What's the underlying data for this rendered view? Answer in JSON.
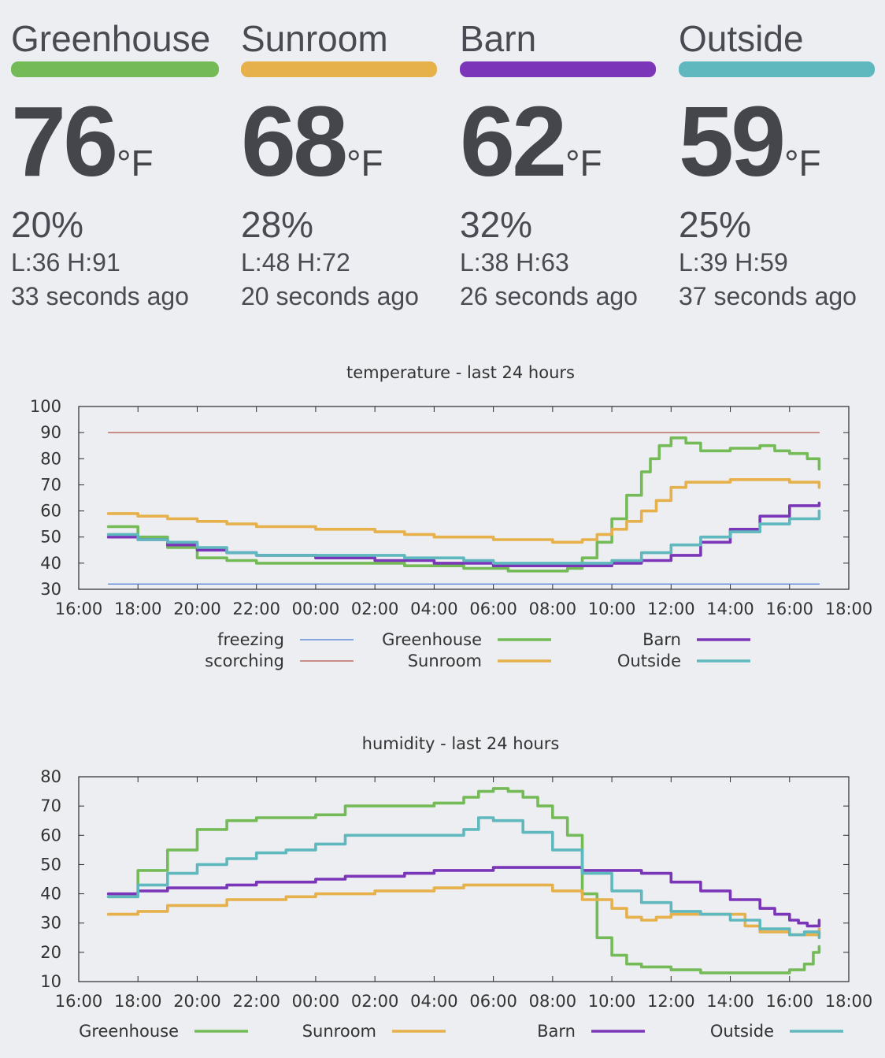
{
  "sensors": [
    {
      "name": "Greenhouse",
      "color": "#74bb58",
      "temp": "76",
      "unit": "°F",
      "humidity": "20%",
      "lowhigh": "L:36 H:91",
      "updated": "33 seconds ago"
    },
    {
      "name": "Sunroom",
      "color": "#e6b04b",
      "temp": "68",
      "unit": "°F",
      "humidity": "28%",
      "lowhigh": "L:48 H:72",
      "updated": "20 seconds ago"
    },
    {
      "name": "Barn",
      "color": "#7b35b8",
      "temp": "62",
      "unit": "°F",
      "humidity": "32%",
      "lowhigh": "L:38 H:63",
      "updated": "26 seconds ago"
    },
    {
      "name": "Outside",
      "color": "#5fb8bd",
      "temp": "59",
      "unit": "°F",
      "humidity": "25%",
      "lowhigh": "L:39 H:59",
      "updated": "37 seconds ago"
    }
  ],
  "chart_data": [
    {
      "type": "line",
      "title": "temperature - last 24 hours",
      "xlabel": "",
      "ylabel": "",
      "x_ticks": [
        "16:00",
        "18:00",
        "20:00",
        "22:00",
        "00:00",
        "02:00",
        "04:00",
        "06:00",
        "08:00",
        "10:00",
        "12:00",
        "14:00",
        "16:00",
        "18:00"
      ],
      "xlim": [
        0,
        26
      ],
      "ylim": [
        30,
        100
      ],
      "y_ticks": [
        30,
        40,
        50,
        60,
        70,
        80,
        90,
        100
      ],
      "grid": false,
      "legend": "bottom",
      "series": [
        {
          "name": "freezing",
          "color": "#4a78d6",
          "x": [
            1,
            25
          ],
          "values": [
            32,
            32
          ]
        },
        {
          "name": "scorching",
          "color": "#b5514a",
          "x": [
            1,
            25
          ],
          "values": [
            90,
            90
          ]
        },
        {
          "name": "Greenhouse",
          "color": "#74bb58",
          "x": [
            1,
            2,
            3,
            4,
            5,
            6,
            7,
            8,
            9,
            10,
            11,
            12,
            13,
            14,
            14.5,
            15,
            15.5,
            16,
            16.5,
            17,
            17.5,
            18,
            18.5,
            19,
            19.3,
            19.6,
            20,
            20.5,
            21,
            21.5,
            22,
            22.5,
            23,
            23.5,
            24,
            24.3,
            24.6,
            25
          ],
          "values": [
            54,
            50,
            46,
            42,
            41,
            40,
            40,
            40,
            40,
            40,
            39,
            39,
            38,
            38,
            37,
            37,
            37,
            37,
            38,
            42,
            48,
            57,
            66,
            75,
            80,
            85,
            88,
            86,
            83,
            83,
            84,
            84,
            85,
            83,
            82,
            82,
            80,
            76
          ]
        },
        {
          "name": "Sunroom",
          "color": "#e6b04b",
          "x": [
            1,
            2,
            3,
            4,
            5,
            6,
            7,
            8,
            9,
            10,
            11,
            12,
            13,
            14,
            15,
            16,
            16.5,
            17,
            17.5,
            18,
            18.5,
            19,
            19.5,
            20,
            20.5,
            21,
            22,
            23,
            24,
            25
          ],
          "values": [
            59,
            58,
            57,
            56,
            55,
            54,
            54,
            53,
            53,
            52,
            51,
            50,
            50,
            49,
            49,
            48,
            48,
            49,
            51,
            53,
            56,
            60,
            64,
            69,
            71,
            71,
            72,
            72,
            71,
            69
          ]
        },
        {
          "name": "Barn",
          "color": "#7b35b8",
          "x": [
            1,
            2,
            3,
            4,
            5,
            6,
            7,
            8,
            9,
            10,
            11,
            12,
            13,
            14,
            15,
            16,
            17,
            18,
            19,
            20,
            21,
            22,
            23,
            24,
            25
          ],
          "values": [
            50,
            49,
            47,
            45,
            44,
            43,
            43,
            42,
            42,
            41,
            41,
            40,
            40,
            39,
            39,
            39,
            39,
            40,
            41,
            43,
            48,
            53,
            58,
            62,
            63
          ]
        },
        {
          "name": "Outside",
          "color": "#5fb8bd",
          "x": [
            1,
            2,
            3,
            4,
            5,
            6,
            7,
            8,
            9,
            10,
            11,
            12,
            13,
            14,
            15,
            16,
            17,
            18,
            19,
            20,
            21,
            22,
            23,
            24,
            25
          ],
          "values": [
            51,
            49,
            48,
            46,
            44,
            43,
            43,
            43,
            43,
            43,
            42,
            42,
            41,
            40,
            40,
            40,
            40,
            41,
            44,
            47,
            50,
            52,
            55,
            57,
            60
          ]
        }
      ]
    },
    {
      "type": "line",
      "title": "humidity - last 24 hours",
      "xlabel": "",
      "ylabel": "",
      "x_ticks": [
        "16:00",
        "18:00",
        "20:00",
        "22:00",
        "00:00",
        "02:00",
        "04:00",
        "06:00",
        "08:00",
        "10:00",
        "12:00",
        "14:00",
        "16:00",
        "18:00"
      ],
      "xlim": [
        0,
        26
      ],
      "ylim": [
        10,
        80
      ],
      "y_ticks": [
        10,
        20,
        30,
        40,
        50,
        60,
        70,
        80
      ],
      "grid": false,
      "legend": "bottom",
      "series": [
        {
          "name": "Greenhouse",
          "color": "#74bb58",
          "x": [
            1,
            2,
            3,
            4,
            5,
            6,
            7,
            8,
            9,
            10,
            11,
            12,
            13,
            13.5,
            14,
            14.5,
            15,
            15.5,
            16,
            16.5,
            17,
            17.5,
            18,
            18.5,
            19,
            19.5,
            20,
            20.5,
            21,
            21.5,
            22,
            22.5,
            23,
            23.5,
            24,
            24.5,
            24.8,
            25
          ],
          "values": [
            39,
            48,
            55,
            62,
            65,
            66,
            66,
            67,
            70,
            70,
            70,
            71,
            73,
            75,
            76,
            75,
            73,
            70,
            66,
            60,
            40,
            25,
            19,
            16,
            15,
            15,
            14,
            14,
            13,
            13,
            13,
            13,
            13,
            13,
            14,
            16,
            20,
            22
          ]
        },
        {
          "name": "Sunroom",
          "color": "#e6b04b",
          "x": [
            1,
            2,
            3,
            4,
            5,
            6,
            7,
            8,
            9,
            10,
            11,
            12,
            13,
            14,
            15,
            16,
            17,
            18,
            18.5,
            19,
            19.5,
            20,
            21,
            22,
            22.5,
            23,
            24,
            24.5,
            25
          ],
          "values": [
            33,
            34,
            36,
            36,
            38,
            38,
            39,
            40,
            40,
            41,
            41,
            42,
            43,
            43,
            43,
            41,
            38,
            35,
            32,
            31,
            32,
            33,
            33,
            33,
            29,
            27,
            26,
            26,
            28
          ]
        },
        {
          "name": "Barn",
          "color": "#7b35b8",
          "x": [
            1,
            2,
            3,
            4,
            5,
            6,
            7,
            8,
            9,
            10,
            11,
            12,
            13,
            14,
            15,
            16,
            17,
            18,
            19,
            20,
            21,
            22,
            23,
            23.5,
            24,
            24.3,
            24.6,
            25
          ],
          "values": [
            40,
            41,
            42,
            42,
            43,
            44,
            44,
            45,
            46,
            46,
            47,
            48,
            48,
            49,
            49,
            49,
            48,
            48,
            47,
            44,
            41,
            38,
            35,
            33,
            31,
            30,
            29,
            31
          ]
        },
        {
          "name": "Outside",
          "color": "#5fb8bd",
          "x": [
            1,
            2,
            3,
            4,
            5,
            6,
            7,
            8,
            9,
            10,
            11,
            12,
            13,
            13.5,
            14,
            15,
            16,
            17,
            18,
            19,
            20,
            21,
            22,
            23,
            24,
            24.5,
            25
          ],
          "values": [
            39,
            43,
            47,
            50,
            52,
            54,
            55,
            57,
            60,
            60,
            60,
            60,
            62,
            66,
            65,
            61,
            55,
            47,
            41,
            37,
            34,
            33,
            31,
            28,
            26,
            27,
            25
          ]
        }
      ]
    }
  ]
}
